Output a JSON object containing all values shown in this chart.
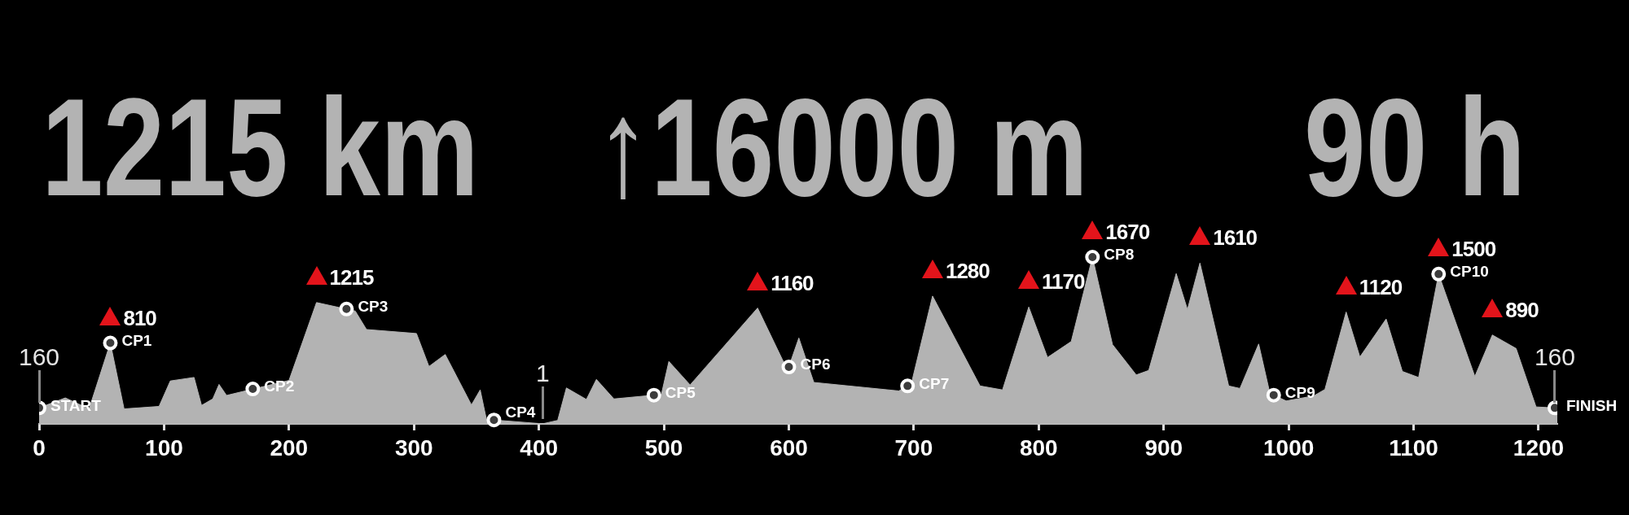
{
  "chart_data": {
    "type": "area",
    "annotations": [
      "1215 km",
      "↑16000 m",
      "90 h",
      {
        "text": "160",
        "x": 0,
        "y": 160
      },
      {
        "text": "1",
        "x": 403,
        "y": 1
      },
      {
        "text": "160",
        "x": 1213,
        "y": 160
      }
    ],
    "xlim": [
      0,
      1215
    ],
    "xticks": [
      0,
      100,
      200,
      300,
      400,
      500,
      600,
      700,
      800,
      900,
      1000,
      1100,
      1200
    ],
    "tick_labels": "x",
    "series": [
      {
        "color": "#b3b3b3",
        "x": [
          0,
          21,
          40,
          57,
          68,
          96,
          105,
          124,
          130,
          139,
          144,
          150,
          200,
          222,
          253,
          262,
          302,
          312,
          325,
          346,
          353,
          358,
          403,
          415,
          422,
          438,
          446,
          460,
          498,
          504,
          521,
          575,
          599,
          608,
          620,
          688,
          698,
          715,
          753,
          771,
          792,
          807,
          826,
          843,
          859,
          878,
          888,
          910,
          919,
          929,
          952,
          961,
          976,
          985,
          998,
          1020,
          1029,
          1046,
          1057,
          1078,
          1091,
          1104,
          1120,
          1149,
          1163,
          1182,
          1198,
          1213,
          1215
        ],
        "values": [
          160,
          260,
          150,
          810,
          150,
          175,
          430,
          465,
          185,
          250,
          395,
          285,
          435,
          1215,
          1130,
          945,
          905,
          575,
          695,
          190,
          340,
          45,
          1,
          35,
          360,
          245,
          445,
          250,
          295,
          625,
          390,
          1160,
          535,
          860,
          415,
          330,
          400,
          1280,
          380,
          340,
          1170,
          665,
          825,
          1670,
          795,
          490,
          535,
          1505,
          1145,
          1610,
          380,
          355,
          800,
          305,
          230,
          280,
          345,
          1120,
          670,
          1050,
          525,
          465,
          1500,
          475,
          890,
          755,
          170,
          160,
          160
        ],
        "value_labels": [
          null,
          null,
          null,
          "810",
          null,
          null,
          null,
          null,
          null,
          null,
          null,
          null,
          null,
          "1215",
          null,
          null,
          null,
          null,
          null,
          null,
          null,
          null,
          null,
          null,
          null,
          null,
          null,
          null,
          null,
          null,
          null,
          "1160",
          null,
          null,
          null,
          null,
          null,
          "1280",
          null,
          null,
          "1170",
          null,
          null,
          "1670",
          null,
          null,
          null,
          null,
          null,
          "1610",
          null,
          null,
          null,
          null,
          null,
          null,
          null,
          "1120",
          null,
          null,
          null,
          null,
          "1500",
          null,
          "890",
          null,
          null,
          null,
          null
        ]
      },
      {
        "type": "scatter",
        "color": "#ffffff",
        "marker": "circle",
        "x": [
          0,
          57,
          171,
          246,
          364,
          492,
          600,
          695,
          843,
          988,
          1120,
          1213
        ],
        "values": [
          160,
          810,
          350,
          1150,
          39,
          288,
          570,
          380,
          1670,
          288,
          1500,
          160
        ],
        "value_labels": [
          "START",
          "CP1",
          "CP2",
          "CP3",
          "CP4",
          "CP5",
          "CP6",
          "CP7",
          "CP8",
          "CP9",
          "CP10",
          "FINISH"
        ]
      }
    ]
  }
}
